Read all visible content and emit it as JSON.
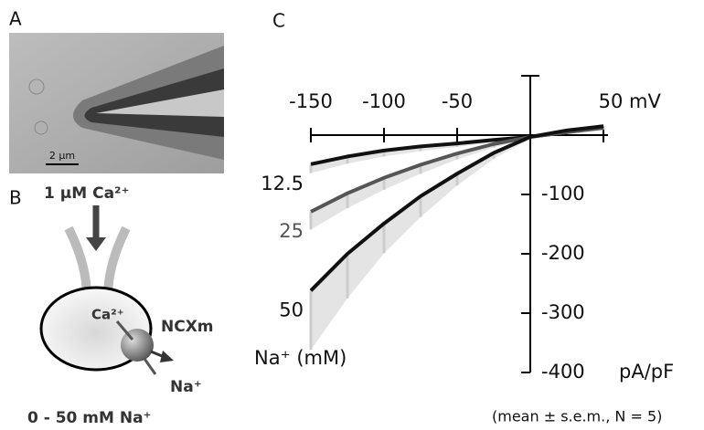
{
  "panels": {
    "a": "A",
    "b": "B",
    "c": "C"
  },
  "panel_a": {
    "scale_bar": "2 μm"
  },
  "panel_b": {
    "pipette_solution": "1 μM Ca²⁺",
    "ion_in": "Ca²⁺",
    "exchanger": "NCXm",
    "ion_out": "Na⁺",
    "bath_solution": "0 - 50 mM Na⁺"
  },
  "chart_data": {
    "type": "line",
    "x_label": "mV",
    "y_label": "pA/pF",
    "legend_title": "Na⁺ (mM)",
    "note": "(mean ± s.e.m., N = 5)",
    "x": [
      -150,
      -125,
      -100,
      -75,
      -50,
      -25,
      0,
      25,
      50
    ],
    "xlim": [
      -150,
      50
    ],
    "xticks": [
      -150,
      -100,
      -50,
      50
    ],
    "ylim": [
      -400,
      100
    ],
    "yticks": [
      -400,
      -300,
      -200,
      -100
    ],
    "series": [
      {
        "name": "12.5",
        "color": "#111111",
        "values": [
          -49,
          -36,
          -26,
          -19,
          -14,
          -8,
          -3,
          5,
          15
        ],
        "errors": [
          15,
          12,
          10,
          8,
          6,
          4,
          3,
          3,
          3
        ]
      },
      {
        "name": "25",
        "color": "#555555",
        "values": [
          -129,
          -98,
          -72,
          -50,
          -31,
          -15,
          -3,
          5,
          12
        ],
        "errors": [
          30,
          25,
          20,
          15,
          10,
          6,
          3,
          3,
          3
        ]
      },
      {
        "name": "50",
        "color": "#111111",
        "values": [
          -262,
          -200,
          -149,
          -103,
          -65,
          -30,
          -3,
          8,
          15
        ],
        "errors": [
          100,
          75,
          50,
          35,
          20,
          10,
          3,
          3,
          3
        ]
      }
    ]
  }
}
